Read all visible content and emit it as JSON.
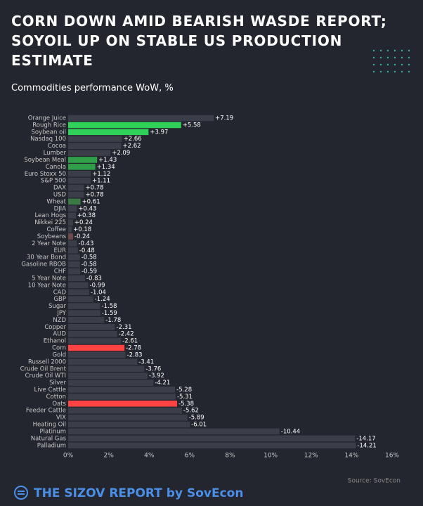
{
  "chart_data": {
    "type": "hbar",
    "title": "CORN DOWN AMID BEARISH WASDE REPORT; SOYOIL UP ON STABLE US PRODUCTION ESTIMATE",
    "subtitle": "Commodities performance WoW, %",
    "source": "Source: SovEcon",
    "brand": "THE SIZOV REPORT by SovEcon",
    "categories": [
      "Orange Juice",
      "Rough Rice",
      "Soybean oil",
      "Nasdaq 100",
      "Cocoa",
      "Lumber",
      "Soybean Meal",
      "Canola",
      "Euro Stoxx 50",
      "S&P 500",
      "DAX",
      "USD",
      "Wheat",
      "DJIA",
      "Lean Hogs",
      "Nikkei 225",
      "Coffee",
      "Soybeans",
      "2 Year Note",
      "EUR",
      "30 Year Bond",
      "Gasoline RBOB",
      "CHF",
      "5 Year Note",
      "10 Year Note",
      "CAD",
      "GBP",
      "Sugar",
      "JPY",
      "NZD",
      "Copper",
      "AUD",
      "Ethanol",
      "Corn",
      "Gold",
      "Russell 2000",
      "Crude Oil Brent",
      "Crude Oil WTI",
      "Silver",
      "Live Cattle",
      "Cotton",
      "Oats",
      "Feeder Cattle",
      "VIX",
      "Heating Oil",
      "Platinum",
      "Natural Gas",
      "Palladium"
    ],
    "values": [
      7.19,
      5.58,
      3.97,
      2.66,
      2.62,
      2.09,
      1.43,
      1.34,
      1.12,
      1.11,
      0.78,
      0.78,
      0.61,
      0.43,
      0.38,
      0.24,
      0.18,
      -0.24,
      -0.43,
      -0.48,
      -0.58,
      -0.58,
      -0.59,
      -0.83,
      -0.99,
      -1.04,
      -1.24,
      -1.58,
      -1.59,
      -1.78,
      -2.31,
      -2.42,
      -2.61,
      -2.78,
      -2.83,
      -3.41,
      -3.76,
      -3.92,
      -4.21,
      -5.28,
      -5.31,
      -5.38,
      -5.62,
      -5.89,
      -6.01,
      -10.44,
      -14.17,
      -14.21
    ],
    "value_labels": [
      "+7.19",
      "+5.58",
      "+3.97",
      "+2.66",
      "+2.62",
      "+2.09",
      "+1.43",
      "+1.34",
      "+1.12",
      "+1.11",
      "+0.78",
      "+0.78",
      "+0.61",
      "+0.43",
      "+0.38",
      "+0.24",
      "+0.18",
      "-0.24",
      "-0.43",
      "-0.48",
      "-0.58",
      "-0.58",
      "-0.59",
      "-0.83",
      "-0.99",
      "-1.04",
      "-1.24",
      "-1.58",
      "-1.59",
      "-1.78",
      "-2.31",
      "-2.42",
      "-2.61",
      "-2.78",
      "-2.83",
      "-3.41",
      "-3.76",
      "-3.92",
      "-4.21",
      "-5.28",
      "-5.31",
      "-5.38",
      "-5.62",
      "-5.89",
      "-6.01",
      "-10.44",
      "-14.17",
      "-14.21"
    ],
    "colors": [
      "#3b3e48",
      "#2fd158",
      "#2fd158",
      "#3b3e48",
      "#3b3e48",
      "#3b3e48",
      "#2f9f49",
      "#2f9f49",
      "#3b3e48",
      "#3b3e48",
      "#3b3e48",
      "#3b3e48",
      "#3c7a45",
      "#3b3e48",
      "#3b3e48",
      "#3b3e48",
      "#3b3e48",
      "#6e4a4c",
      "#3b3e48",
      "#3b3e48",
      "#3b3e48",
      "#3b3e48",
      "#3b3e48",
      "#3b3e48",
      "#3b3e48",
      "#3b3e48",
      "#3b3e48",
      "#3b3e48",
      "#3b3e48",
      "#3b3e48",
      "#3b3e48",
      "#3b3e48",
      "#3b3e48",
      "#ff4242",
      "#3b3e48",
      "#3b3e48",
      "#3b3e48",
      "#3b3e48",
      "#3b3e48",
      "#3b3e48",
      "#3b3e48",
      "#ff4242",
      "#3b3e48",
      "#3b3e48",
      "#3b3e48",
      "#3b3e48",
      "#3b3e48",
      "#3b3e48"
    ],
    "xlim": [
      0,
      16
    ],
    "xticks": [
      {
        "value": 0,
        "label": "0%"
      },
      {
        "value": 2,
        "label": "2%"
      },
      {
        "value": 4,
        "label": "4%"
      },
      {
        "value": 6,
        "label": "6%"
      },
      {
        "value": 8,
        "label": "8%"
      },
      {
        "value": 10,
        "label": "10%"
      },
      {
        "value": 12,
        "label": "12%"
      },
      {
        "value": 14,
        "label": "14%"
      },
      {
        "value": 16,
        "label": "16%"
      }
    ]
  }
}
